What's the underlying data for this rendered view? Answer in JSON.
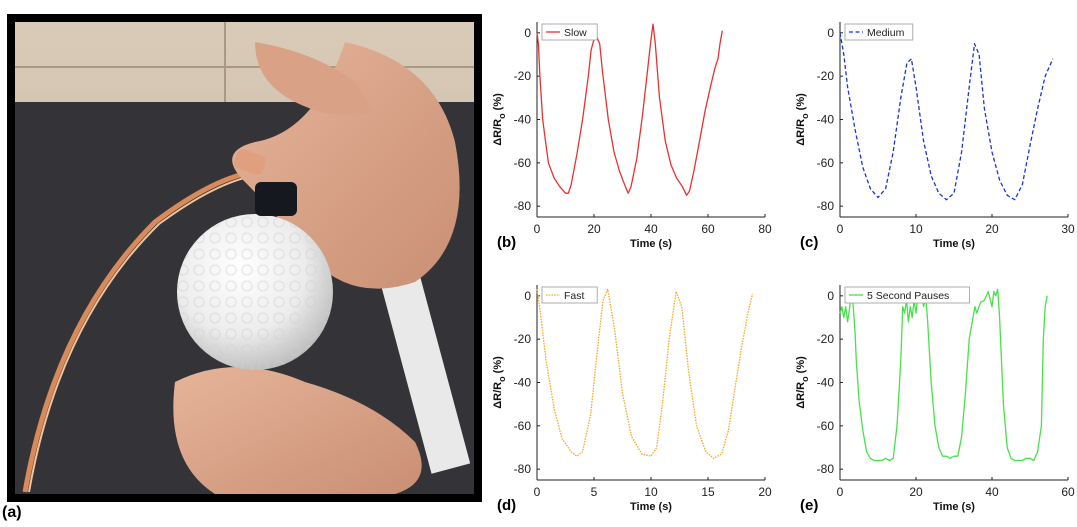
{
  "figure": {
    "panel_a_label": "(a)"
  },
  "photo": {
    "description_icon": "photo-of-hand-holding-golf-ball-sensor"
  },
  "chart_data": [
    {
      "type": "line",
      "panel": "(b)",
      "xlabel": "Time (s)",
      "ylabel": "ΔR/R",
      "ylabel_sub": "o",
      "ylabel_unit": "(%)",
      "xlim": [
        0,
        80
      ],
      "ylim": [
        -85,
        5
      ],
      "xticks": [
        0,
        20,
        40,
        60,
        80
      ],
      "yticks": [
        0,
        -20,
        -40,
        -60,
        -80
      ],
      "legend_position": "top-left",
      "series": [
        {
          "name": "Slow",
          "color": "#e8312f",
          "style": "solid",
          "x": [
            0,
            0.5,
            1,
            2,
            3,
            4,
            6,
            8,
            10,
            11,
            12,
            14,
            16,
            18,
            19,
            20,
            21,
            22,
            23,
            25,
            27,
            29,
            31,
            32,
            33,
            35,
            37,
            39,
            40,
            40.7,
            41.5,
            43,
            45,
            47,
            49,
            51,
            52.5,
            53.5,
            55,
            57,
            59,
            61,
            62.5,
            63.5,
            64.2,
            65
          ],
          "y": [
            0,
            -5,
            -20,
            -40,
            -50,
            -60,
            -67,
            -71,
            -74,
            -74,
            -70,
            -56,
            -40,
            -20,
            -8,
            -3,
            -2,
            -5,
            -18,
            -40,
            -55,
            -64,
            -71,
            -74,
            -71,
            -58,
            -38,
            -15,
            -3,
            4,
            -5,
            -30,
            -50,
            -61,
            -67,
            -71,
            -75,
            -73,
            -64,
            -50,
            -36,
            -24,
            -16,
            -12,
            -5,
            1
          ]
        }
      ]
    },
    {
      "type": "line",
      "panel": "(c)",
      "xlabel": "Time (s)",
      "ylabel": "ΔR/R",
      "ylabel_sub": "o",
      "ylabel_unit": "(%)",
      "xlim": [
        0,
        30
      ],
      "ylim": [
        -85,
        5
      ],
      "xticks": [
        0,
        10,
        20,
        30
      ],
      "yticks": [
        0,
        -20,
        -40,
        -60,
        -80
      ],
      "legend_position": "top-left",
      "series": [
        {
          "name": "Medium",
          "color": "#1a33d6",
          "style": "dashed",
          "x": [
            0,
            0.5,
            1,
            2,
            3,
            4,
            5,
            6,
            7,
            8,
            8.8,
            9.4,
            10,
            11,
            12,
            13,
            14,
            15,
            16,
            17,
            17.7,
            18.3,
            19,
            20,
            21,
            22,
            23,
            24,
            25,
            26,
            27,
            28
          ],
          "y": [
            0,
            -10,
            -25,
            -45,
            -62,
            -72,
            -76,
            -72,
            -55,
            -30,
            -14,
            -12,
            -25,
            -50,
            -66,
            -74,
            -77,
            -74,
            -55,
            -25,
            -5,
            -10,
            -35,
            -55,
            -68,
            -75,
            -77,
            -70,
            -52,
            -35,
            -20,
            -12
          ]
        }
      ]
    },
    {
      "type": "line",
      "panel": "(d)",
      "xlabel": "Time (s)",
      "ylabel": "ΔR/R",
      "ylabel_sub": "o",
      "ylabel_unit": "(%)",
      "xlim": [
        0,
        20
      ],
      "ylim": [
        -85,
        5
      ],
      "xticks": [
        0,
        5,
        10,
        15,
        20
      ],
      "yticks": [
        0,
        -20,
        -40,
        -60,
        -80
      ],
      "legend_position": "top-left",
      "series": [
        {
          "name": "Fast",
          "color": "#f0a81e",
          "style": "dotted",
          "x": [
            0,
            0.3,
            0.8,
            1.5,
            2.2,
            3,
            3.5,
            4,
            4.7,
            5.3,
            5.8,
            6.2,
            6.8,
            7.5,
            8.3,
            9.2,
            10,
            10.5,
            11,
            11.6,
            12.2,
            12.7,
            13.3,
            14,
            14.8,
            15.5,
            16.2,
            16.8,
            17.3,
            17.9,
            18.5,
            18.9
          ],
          "y": [
            3,
            -8,
            -30,
            -52,
            -66,
            -72,
            -74,
            -72,
            -55,
            -25,
            -2,
            3,
            -15,
            -45,
            -65,
            -73,
            -74,
            -70,
            -50,
            -20,
            2,
            -5,
            -35,
            -60,
            -72,
            -75,
            -73,
            -62,
            -45,
            -25,
            -8,
            1
          ]
        }
      ]
    },
    {
      "type": "line",
      "panel": "(e)",
      "xlabel": "Time (s)",
      "ylabel": "ΔR/R",
      "ylabel_sub": "o",
      "ylabel_unit": "(%)",
      "xlim": [
        0,
        60
      ],
      "ylim": [
        -85,
        5
      ],
      "xticks": [
        0,
        20,
        40,
        60
      ],
      "yticks": [
        0,
        -20,
        -40,
        -60,
        -80
      ],
      "legend_position": "top-left",
      "series": [
        {
          "name": "5 Second Pauses",
          "color": "#49e04a",
          "style": "solid",
          "x": [
            0,
            0.5,
            1,
            1.5,
            2,
            2.5,
            3,
            3.5,
            4,
            4.3,
            5,
            6,
            7,
            8,
            9,
            10,
            11,
            12,
            13,
            14,
            15,
            16,
            16.5,
            17,
            17.5,
            18,
            18.5,
            19,
            19.5,
            20,
            20.5,
            21,
            21.5,
            22,
            22.5,
            23,
            24,
            25,
            26,
            27,
            28,
            29,
            30,
            31,
            32,
            33,
            34,
            35,
            35.5,
            36,
            37,
            38,
            39,
            40,
            40.5,
            41,
            41.5,
            42,
            43,
            44,
            45,
            46,
            47,
            48,
            49,
            50,
            51,
            52,
            53,
            53.5,
            54,
            54.5
          ],
          "y": [
            -8,
            -5,
            -10,
            -5,
            -12,
            -6,
            3,
            -5,
            -18,
            -30,
            -48,
            -62,
            -72,
            -75,
            -76,
            -76,
            -76,
            -75,
            -76,
            -75,
            -60,
            -30,
            -5,
            -8,
            -2,
            -12,
            -5,
            -10,
            -2,
            -8,
            0,
            -2,
            2,
            -5,
            0,
            -10,
            -40,
            -60,
            -70,
            -74,
            -74,
            -75,
            -74,
            -74,
            -65,
            -45,
            -20,
            -10,
            -5,
            -8,
            -3,
            -2,
            2,
            -5,
            2,
            0,
            3,
            -10,
            -50,
            -70,
            -75,
            -76,
            -76,
            -76,
            -75,
            -75,
            -76,
            -72,
            -60,
            -20,
            -5,
            0
          ]
        }
      ]
    }
  ]
}
